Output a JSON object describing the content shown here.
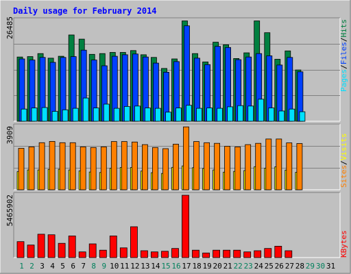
{
  "title": "Daily usage for February 2014",
  "colors": {
    "background": "#C0C0C0",
    "plot_background": "#C0C0C0",
    "title": "#0000FF",
    "hits": "#008040",
    "files": "#0040FF",
    "pages": "#00E0FF",
    "visits": "#FFFF00",
    "sites": "#FF8000",
    "kbytes": "#FF0000",
    "weekday_label": "#000000",
    "weekend_label": "#00805C",
    "legend_sep": "#000000"
  },
  "chart_data": [
    {
      "type": "bar",
      "panel": "hits-files-pages",
      "max_label": "26485",
      "ymax": 26485,
      "legend": [
        "Hits",
        "Files",
        "Pages"
      ],
      "categories": [
        "1",
        "2",
        "3",
        "4",
        "5",
        "6",
        "7",
        "8",
        "9",
        "10",
        "11",
        "12",
        "13",
        "14",
        "15",
        "16",
        "17",
        "18",
        "19",
        "20",
        "21",
        "22",
        "23",
        "24",
        "25",
        "26",
        "27",
        "28",
        "29",
        "30",
        "31"
      ],
      "weekend": [
        1,
        2,
        8,
        9,
        15,
        16,
        22,
        23,
        29,
        30
      ],
      "series": [
        {
          "name": "Hits",
          "values": [
            16900,
            17000,
            17800,
            16600,
            17100,
            22700,
            21600,
            17600,
            17800,
            18100,
            18100,
            18600,
            17500,
            16800,
            13900,
            16400,
            26400,
            17800,
            15600,
            20800,
            20100,
            16500,
            18000,
            26400,
            23300,
            16300,
            18500,
            13500,
            null,
            null,
            null
          ]
        },
        {
          "name": "Files",
          "values": [
            16400,
            16100,
            16800,
            15500,
            16800,
            17000,
            18700,
            16100,
            14600,
            17100,
            17500,
            17700,
            16900,
            15300,
            12900,
            15700,
            25100,
            16600,
            14900,
            19700,
            19400,
            16200,
            16900,
            17800,
            17200,
            14800,
            16800,
            13000,
            null,
            null,
            null
          ]
        },
        {
          "name": "Pages",
          "values": [
            3200,
            3500,
            3600,
            2600,
            3000,
            3400,
            6100,
            3500,
            4500,
            3400,
            3900,
            4000,
            3500,
            3400,
            2400,
            3500,
            4200,
            3400,
            3500,
            3400,
            3800,
            4100,
            4000,
            5800,
            3500,
            2700,
            3200,
            2500,
            null,
            null,
            null
          ]
        }
      ]
    },
    {
      "type": "bar",
      "panel": "sites-visits",
      "max_label": "3909",
      "ymax": 3909,
      "legend": [
        "Sites",
        "Visits"
      ],
      "categories": [
        "1",
        "2",
        "3",
        "4",
        "5",
        "6",
        "7",
        "8",
        "9",
        "10",
        "11",
        "12",
        "13",
        "14",
        "15",
        "16",
        "17",
        "18",
        "19",
        "20",
        "21",
        "22",
        "23",
        "24",
        "25",
        "26",
        "27",
        "28",
        "29",
        "30",
        "31"
      ],
      "series": [
        {
          "name": "Sites",
          "values": [
            2570,
            2660,
            2920,
            3000,
            2920,
            2920,
            2660,
            2620,
            2660,
            2990,
            2990,
            2960,
            2800,
            2620,
            2550,
            2830,
            3900,
            2990,
            2920,
            2880,
            2700,
            2660,
            2800,
            2880,
            3150,
            3150,
            2910,
            2870,
            null,
            null,
            null
          ]
        },
        {
          "name": "Visits",
          "values": [
            1120,
            1230,
            1230,
            1260,
            1270,
            1230,
            1170,
            1100,
            1070,
            1330,
            1380,
            1380,
            1160,
            1060,
            1010,
            1390,
            1480,
            1370,
            1320,
            1230,
            1090,
            1140,
            1190,
            1430,
            1340,
            1420,
            1220,
            1080,
            null,
            null,
            null
          ]
        }
      ]
    },
    {
      "type": "bar",
      "panel": "kbytes",
      "max_label": "5465902",
      "ymax": 5465902,
      "legend": [
        "KBytes"
      ],
      "categories": [
        "1",
        "2",
        "3",
        "4",
        "5",
        "6",
        "7",
        "8",
        "9",
        "10",
        "11",
        "12",
        "13",
        "14",
        "15",
        "16",
        "17",
        "18",
        "19",
        "20",
        "21",
        "22",
        "23",
        "24",
        "25",
        "26",
        "27",
        "28",
        "29",
        "30",
        "31"
      ],
      "series": [
        {
          "name": "KBytes",
          "values": [
            1400000,
            1100000,
            2050000,
            2000000,
            1250000,
            1900000,
            500000,
            1200000,
            650000,
            1900000,
            850000,
            2700000,
            600000,
            500000,
            550000,
            800000,
            5465902,
            650000,
            400000,
            650000,
            650000,
            650000,
            500000,
            600000,
            800000,
            1000000,
            600000,
            null,
            null,
            null,
            null
          ]
        }
      ]
    }
  ]
}
